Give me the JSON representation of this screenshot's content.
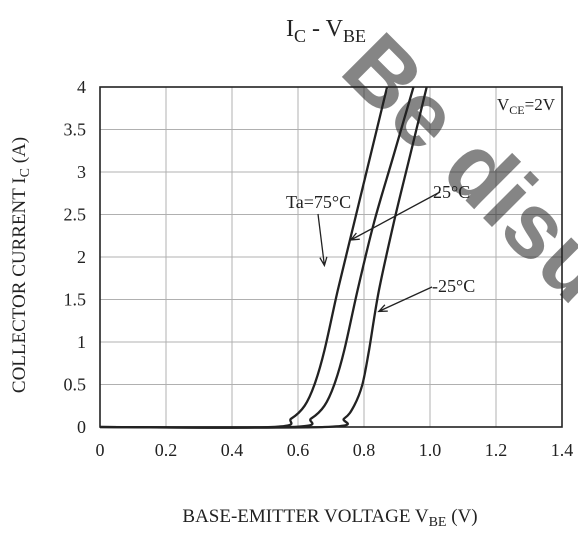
{
  "chart_data": {
    "type": "line",
    "title": {
      "main": "I",
      "sub_c": "C",
      "dash": " - V",
      "sub_be": "BE"
    },
    "xlabel": {
      "main": "BASE-EMITTER VOLTAGE  V",
      "sub": "BE",
      "unit": " (V)"
    },
    "ylabel": {
      "main": "COLLECTOR  CURRENT  I",
      "sub": "C",
      "unit": " (A)"
    },
    "xlim": [
      0,
      1.4
    ],
    "ylim": [
      0,
      4
    ],
    "x_ticks": [
      0,
      0.2,
      0.4,
      0.6,
      0.8,
      1.0,
      1.2,
      1.4
    ],
    "x_tick_labels": [
      "0",
      "0.2",
      "0.4",
      "0.6",
      "0.8",
      "1.0",
      "1.2",
      "1.4"
    ],
    "y_ticks": [
      0,
      0.5,
      1,
      1.5,
      2,
      2.5,
      3,
      3.5,
      4
    ],
    "y_tick_labels": [
      "0",
      "0.5",
      "1",
      "1.5",
      "2",
      "2.5",
      "3",
      "3.5",
      "4"
    ],
    "grid": true,
    "condition": {
      "prefix": "V",
      "sub": "CE",
      "value": "=2V"
    },
    "series": [
      {
        "name": "Ta=75°C",
        "x": [
          0,
          0.52,
          0.58,
          0.62,
          0.65,
          0.68,
          0.72,
          0.77,
          0.82,
          0.87
        ],
        "y": [
          0,
          0,
          0.1,
          0.25,
          0.5,
          0.9,
          1.6,
          2.4,
          3.2,
          4.0
        ]
      },
      {
        "name": "25°C",
        "x": [
          0,
          0.58,
          0.64,
          0.68,
          0.71,
          0.74,
          0.78,
          0.83,
          0.89,
          0.95
        ],
        "y": [
          0,
          0,
          0.1,
          0.25,
          0.5,
          0.9,
          1.6,
          2.4,
          3.2,
          4.0
        ]
      },
      {
        "name": "-25°C",
        "x": [
          0,
          0.68,
          0.74,
          0.77,
          0.795,
          0.815,
          0.845,
          0.89,
          0.94,
          0.99
        ],
        "y": [
          0,
          0,
          0.1,
          0.25,
          0.5,
          0.9,
          1.6,
          2.4,
          3.2,
          4.0
        ]
      }
    ],
    "annotations": [
      {
        "text": "Ta=75°C",
        "points_to": {
          "x": 0.68,
          "y": 1.9
        }
      },
      {
        "text": "25°C",
        "points_to": {
          "x": 0.76,
          "y": 2.2
        }
      },
      {
        "text": "-25°C",
        "points_to": {
          "x": 0.845,
          "y": 1.36
        }
      }
    ],
    "watermark": "Be disu",
    "colors": {
      "line": "#222222",
      "grid": "#b0b0b0",
      "frame": "#222222",
      "watermark": "#c0c0c0"
    }
  }
}
